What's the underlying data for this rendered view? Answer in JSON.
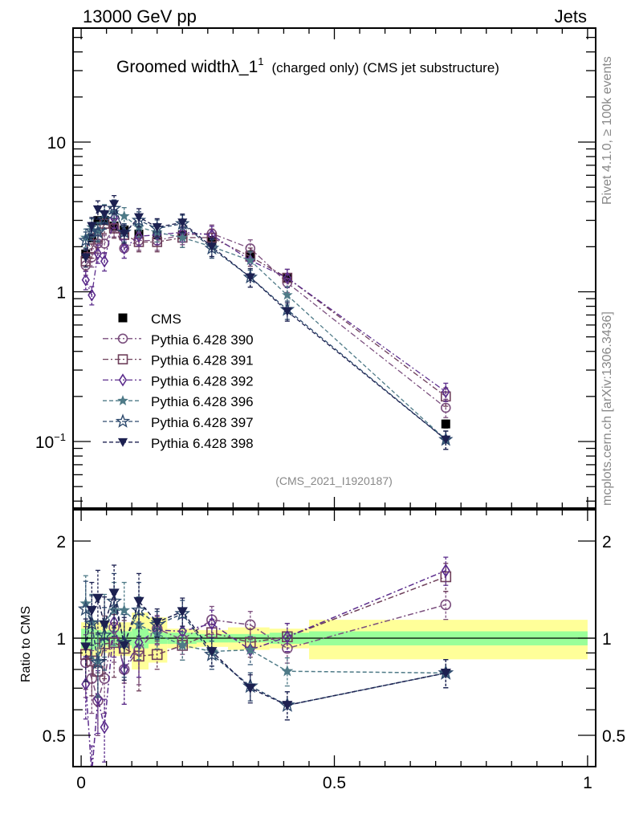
{
  "header": {
    "left": "13000 GeV pp",
    "right": "Jets"
  },
  "side_labels": {
    "rivet": "Rivet 4.1.0, ≥ 100k events",
    "mcplots": "mcplots.cern.ch [arXiv:1306.3436]"
  },
  "chart_data": [
    {
      "type": "scatter",
      "panel": "main",
      "title_main": "Groomed width",
      "title_symbol": "λ_1",
      "title_sup": "1",
      "title_rest": "(charged only) (CMS jet substructure)",
      "annotation": "(CMS_2021_I1920187)",
      "xlim": [
        -0.016,
        1.016
      ],
      "ylim": [
        0.0359,
        57.7
      ],
      "yscale": "log",
      "ytick_labels": [
        {
          "value": 10,
          "label": "10"
        },
        {
          "value": 1,
          "label": "1"
        },
        {
          "value": 0.1,
          "label": "10",
          "sup": "−1"
        }
      ],
      "legend_position": "bottom-left",
      "x": [
        0.009,
        0.021,
        0.033,
        0.046,
        0.065,
        0.085,
        0.114,
        0.15,
        0.2,
        0.258,
        0.334,
        0.407,
        0.72
      ],
      "series": [
        {
          "name": "CMS",
          "marker": "square-filled",
          "color": "#000000",
          "line": "none",
          "values": [
            1.79,
            2.29,
            2.99,
            3.0,
            2.75,
            2.59,
            2.43,
            2.4,
            2.4,
            2.2,
            1.76,
            1.23,
            0.131
          ]
        },
        {
          "name": "Pythia 6.428 390",
          "marker": "circle-open",
          "color": "#7b4f7e",
          "line": "dashdot",
          "values": [
            1.5,
            1.7,
            2.1,
            2.1,
            2.7,
            1.95,
            2.2,
            2.2,
            2.4,
            2.45,
            1.95,
            1.15,
            0.168
          ]
        },
        {
          "name": "Pythia 6.428 391",
          "marker": "square-open",
          "color": "#6e3f5a",
          "line": "dashdot",
          "values": [
            1.6,
            1.95,
            2.3,
            2.85,
            2.65,
            2.4,
            2.15,
            2.15,
            2.3,
            2.3,
            1.72,
            1.24,
            0.2
          ]
        },
        {
          "name": "Pythia 6.428 392",
          "marker": "diamond-open",
          "color": "#5c2d8c",
          "line": "dashdot",
          "values": [
            1.2,
            0.95,
            1.8,
            1.6,
            3.1,
            1.95,
            2.35,
            2.4,
            2.5,
            2.4,
            1.62,
            1.24,
            0.215
          ]
        },
        {
          "name": "Pythia 6.428 396",
          "marker": "star-filled",
          "color": "#4e7a87",
          "line": "dashed",
          "values": [
            2.3,
            2.7,
            2.55,
            3.35,
            3.4,
            3.2,
            2.7,
            2.5,
            2.3,
            2.0,
            1.62,
            0.95,
            0.103
          ]
        },
        {
          "name": "Pythia 6.428 397",
          "marker": "star-open",
          "color": "#2e4a6e",
          "line": "dashed",
          "values": [
            2.2,
            2.55,
            2.5,
            3.05,
            3.6,
            2.5,
            3.0,
            2.65,
            2.85,
            1.95,
            1.25,
            0.76,
            0.103
          ]
        },
        {
          "name": "Pythia 6.428 398",
          "marker": "triangle-down-filled",
          "color": "#1c2050",
          "line": "dashed",
          "values": [
            1.7,
            2.75,
            3.55,
            3.3,
            3.85,
            2.45,
            3.15,
            2.7,
            2.9,
            2.0,
            1.25,
            0.74,
            0.103
          ]
        }
      ]
    },
    {
      "type": "scatter",
      "panel": "ratio",
      "ylabel": "Ratio to CMS",
      "xlim": [
        -0.016,
        1.016
      ],
      "ylim": [
        0.4,
        2.5
      ],
      "yscale": "log",
      "ytick_labels": [
        {
          "value": 2,
          "label": "2"
        },
        {
          "value": 1,
          "label": "1"
        },
        {
          "value": 0.5,
          "label": "0.5"
        }
      ],
      "xtick_labels": [
        {
          "value": 0,
          "label": "0"
        },
        {
          "value": 0.5,
          "label": "0.5"
        },
        {
          "value": 1,
          "label": "1"
        }
      ],
      "bin_edges": [
        0,
        0.018,
        0.027,
        0.04,
        0.052,
        0.075,
        0.1,
        0.133,
        0.17,
        0.228,
        0.29,
        0.372,
        0.45,
        1.0
      ],
      "band_stat": [
        0.07,
        0.08,
        0.06,
        0.05,
        0.06,
        0.05,
        0.07,
        0.04,
        0.04,
        0.03,
        0.03,
        0.04,
        0.05
      ],
      "band_total": [
        0.12,
        0.14,
        0.12,
        0.1,
        0.12,
        0.12,
        0.2,
        0.16,
        0.07,
        0.06,
        0.08,
        0.07,
        0.14
      ],
      "x": [
        0.009,
        0.021,
        0.033,
        0.046,
        0.065,
        0.085,
        0.114,
        0.15,
        0.2,
        0.258,
        0.334,
        0.407,
        0.72
      ],
      "series": [
        {
          "name": "Pythia 6.428 390",
          "values": [
            0.84,
            0.75,
            0.64,
            0.75,
            1.08,
            0.8,
            0.92,
            1.07,
            0.99,
            1.14,
            1.1,
            0.93,
            1.27
          ]
        },
        {
          "name": "Pythia 6.428 391",
          "values": [
            0.89,
            0.85,
            0.79,
            0.96,
            0.97,
            0.93,
            0.88,
            0.89,
            0.95,
            1.04,
            0.97,
            1.01,
            1.55
          ]
        },
        {
          "name": "Pythia 6.428 392",
          "values": [
            0.72,
            0.38,
            0.65,
            0.53,
            1.12,
            0.8,
            0.97,
            1.06,
            1.05,
            1.11,
            0.92,
            1.01,
            1.62
          ]
        },
        {
          "name": "Pythia 6.428 396",
          "values": [
            1.28,
            1.12,
            0.85,
            1.12,
            1.22,
            1.22,
            1.1,
            1.03,
            0.95,
            0.91,
            0.92,
            0.79,
            0.78
          ]
        },
        {
          "name": "Pythia 6.428 397",
          "values": [
            1.23,
            1.11,
            0.84,
            1.02,
            1.3,
            0.97,
            1.22,
            1.1,
            1.19,
            0.89,
            0.71,
            0.62,
            0.78
          ]
        },
        {
          "name": "Pythia 6.428 398",
          "values": [
            0.94,
            1.22,
            1.33,
            1.1,
            1.38,
            0.95,
            1.3,
            1.12,
            1.21,
            0.91,
            0.7,
            0.62,
            0.78
          ]
        }
      ]
    }
  ]
}
